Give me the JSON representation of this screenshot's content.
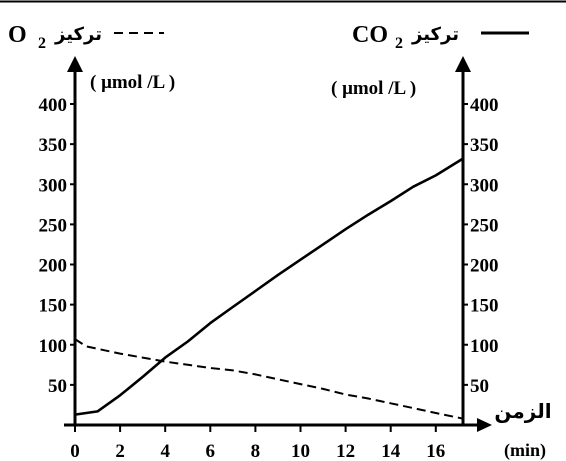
{
  "chart_data": {
    "type": "line",
    "legend": {
      "o2": {
        "label": "تركيز",
        "chem": "O",
        "sub": "2"
      },
      "co2": {
        "label": "تركيز",
        "chem": "CO",
        "sub": "2"
      }
    },
    "unit_left": "( μmol /L )",
    "unit_right": "( μmol /L )",
    "xlabel": "الزمن",
    "xunit": "(min)",
    "x_ticks": [
      "0",
      "2",
      "4",
      "6",
      "8",
      "10",
      "12",
      "14",
      "16"
    ],
    "y_ticks_left": [
      "400",
      "350",
      "300",
      "250",
      "200",
      "150",
      "100",
      "50"
    ],
    "y_ticks_right": [
      "400",
      "350",
      "300",
      "250",
      "200",
      "150",
      "100",
      "50"
    ],
    "xlim": [
      0,
      17.2
    ],
    "ylim": [
      0,
      400
    ],
    "series": [
      {
        "name": "O2",
        "style": "dashed",
        "x": [
          0,
          0.5,
          1,
          2,
          3,
          4,
          5,
          6,
          7,
          8,
          9,
          10,
          11,
          12,
          13,
          14,
          15,
          16,
          17.2
        ],
        "y": [
          107,
          98,
          95,
          89,
          84,
          79,
          75,
          71,
          68,
          63,
          57,
          51,
          45,
          38,
          33,
          27,
          21,
          15,
          8
        ]
      },
      {
        "name": "CO2",
        "style": "solid",
        "x": [
          0,
          1,
          2,
          3,
          4,
          5,
          6,
          7,
          8,
          9,
          10,
          11,
          12,
          13,
          14,
          15,
          16,
          17.2
        ],
        "y": [
          13,
          17,
          37,
          60,
          84,
          104,
          127,
          147,
          167,
          187,
          206,
          225,
          244,
          262,
          279,
          297,
          311,
          332
        ]
      }
    ]
  }
}
